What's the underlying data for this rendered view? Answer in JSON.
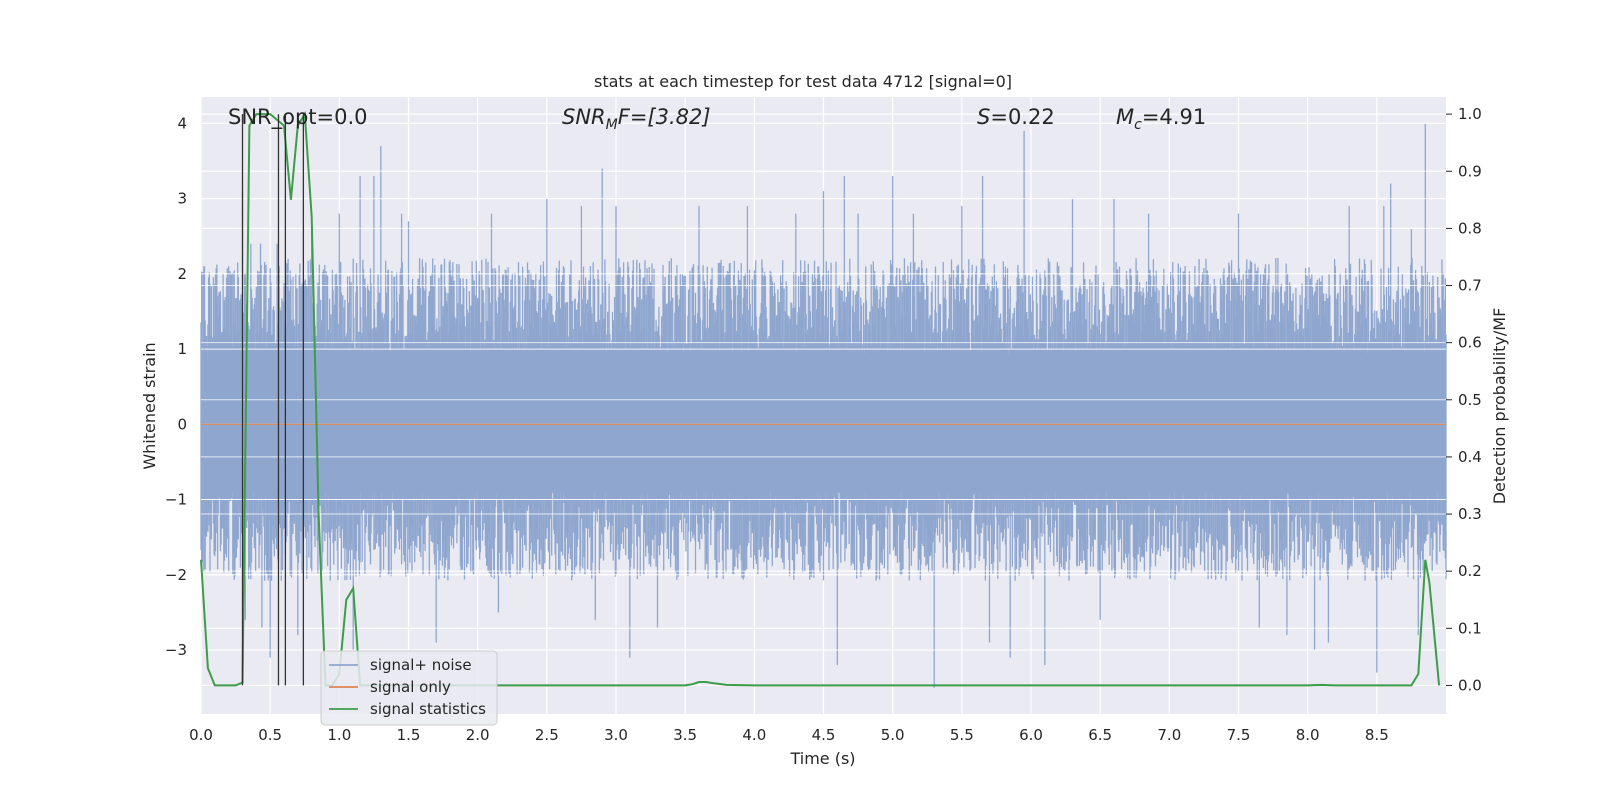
{
  "chart_data": {
    "type": "line",
    "title": "stats at each timestep for test data 4712 [signal=0]",
    "xlabel": "Time (s)",
    "ylabel_left": "Whitened strain",
    "ylabel_right": "Detection probability/MF",
    "xlim": [
      0.0,
      9.0
    ],
    "ylim_left": [
      -3.85,
      4.35
    ],
    "ylim_right": [
      -0.05,
      1.03
    ],
    "x_ticks": [
      "0.0",
      "0.5",
      "1.0",
      "1.5",
      "2.0",
      "2.5",
      "3.0",
      "3.5",
      "4.0",
      "4.5",
      "5.0",
      "5.5",
      "6.0",
      "6.5",
      "7.0",
      "7.5",
      "8.0",
      "8.5"
    ],
    "y_ticks_left": [
      "−3",
      "−2",
      "−1",
      "0",
      "1",
      "2",
      "3",
      "4"
    ],
    "y_ticks_right": [
      "0.0",
      "0.1",
      "0.2",
      "0.3",
      "0.4",
      "0.5",
      "0.6",
      "0.7",
      "0.8",
      "0.9",
      "1.0"
    ],
    "grid": true,
    "legend_position": "lower-left",
    "annotations": {
      "snr_opt": "SNR_opt=0.0",
      "snr_mf_main": "SNR",
      "snr_mf_sub": "M",
      "snr_mf_tail": "F=[3.82]",
      "s_stat": "S",
      "s_value": "=0.22",
      "mc_main": "M",
      "mc_sub": "c",
      "mc_value": "=4.91"
    },
    "series": [
      {
        "name": "signal+ noise",
        "color": "#8fa6cf",
        "description_note": "dense whitened noise",
        "x": [
          0.0,
          9.0
        ],
        "envelope_upper": 1.7,
        "envelope_lower": -1.6,
        "spikes": [
          [
            0.3,
            3.1
          ],
          [
            0.32,
            -2.6
          ],
          [
            0.36,
            2.4
          ],
          [
            0.43,
            2.4
          ],
          [
            0.44,
            -2.7
          ],
          [
            0.5,
            -3.1
          ],
          [
            0.55,
            2.4
          ],
          [
            0.63,
            2.2
          ],
          [
            0.7,
            -2.8
          ],
          [
            0.8,
            2.6
          ],
          [
            1.0,
            2.8
          ],
          [
            1.1,
            -3.0
          ],
          [
            1.15,
            3.3
          ],
          [
            1.25,
            3.3
          ],
          [
            1.3,
            3.7
          ],
          [
            1.45,
            2.8
          ],
          [
            1.5,
            2.7
          ],
          [
            1.7,
            -2.9
          ],
          [
            2.1,
            2.8
          ],
          [
            2.15,
            -2.5
          ],
          [
            2.5,
            3.0
          ],
          [
            2.75,
            2.9
          ],
          [
            2.85,
            -2.6
          ],
          [
            2.9,
            3.4
          ],
          [
            3.0,
            2.9
          ],
          [
            3.1,
            -3.1
          ],
          [
            3.3,
            -2.7
          ],
          [
            3.6,
            2.9
          ],
          [
            3.95,
            2.9
          ],
          [
            4.3,
            2.8
          ],
          [
            4.5,
            3.1
          ],
          [
            4.6,
            -3.2
          ],
          [
            4.65,
            3.3
          ],
          [
            4.75,
            2.8
          ],
          [
            5.0,
            3.3
          ],
          [
            5.15,
            2.8
          ],
          [
            5.3,
            -3.5
          ],
          [
            5.5,
            2.9
          ],
          [
            5.65,
            3.3
          ],
          [
            5.7,
            -2.9
          ],
          [
            5.85,
            -3.1
          ],
          [
            5.95,
            3.9
          ],
          [
            6.1,
            -3.2
          ],
          [
            6.3,
            3.0
          ],
          [
            6.5,
            -2.6
          ],
          [
            6.6,
            3.0
          ],
          [
            6.85,
            2.8
          ],
          [
            7.5,
            2.8
          ],
          [
            7.65,
            -2.7
          ],
          [
            7.85,
            -2.8
          ],
          [
            8.05,
            -3.0
          ],
          [
            8.15,
            -2.9
          ],
          [
            8.3,
            2.9
          ],
          [
            8.5,
            -3.3
          ],
          [
            8.55,
            2.9
          ],
          [
            8.6,
            3.2
          ],
          [
            8.75,
            2.6
          ],
          [
            8.85,
            4.0
          ],
          [
            8.8,
            -2.8
          ]
        ]
      },
      {
        "name": "signal only",
        "color": "#dd8452",
        "x": [
          0.0,
          9.0
        ],
        "y": [
          0.0,
          0.0
        ]
      },
      {
        "name": "signal statistics",
        "color": "#3e9c4a",
        "axis": "right",
        "x": [
          0.0,
          0.05,
          0.1,
          0.2,
          0.25,
          0.3,
          0.35,
          0.4,
          0.45,
          0.5,
          0.55,
          0.6,
          0.65,
          0.7,
          0.75,
          0.8,
          0.85,
          0.9,
          0.95,
          1.0,
          1.05,
          1.1,
          1.15,
          1.2,
          1.3,
          1.5,
          2.0,
          2.5,
          3.0,
          3.5,
          3.55,
          3.6,
          3.65,
          3.7,
          3.8,
          4.0,
          5.0,
          6.0,
          7.0,
          8.0,
          8.1,
          8.2,
          8.5,
          8.75,
          8.8,
          8.85,
          8.88,
          8.95
        ],
        "y": [
          0.22,
          0.03,
          0.0,
          0.0,
          0.0,
          0.005,
          0.98,
          1.0,
          1.0,
          1.0,
          0.99,
          0.98,
          0.85,
          0.98,
          1.0,
          0.82,
          0.3,
          0.0,
          0.0,
          0.02,
          0.15,
          0.17,
          0.0,
          0.0,
          0.0,
          0.0,
          0.0,
          0.0,
          0.0,
          0.0,
          0.002,
          0.006,
          0.006,
          0.004,
          0.001,
          0.0,
          0.0,
          0.0,
          0.0,
          0.0,
          0.001,
          0.0,
          0.0,
          0.0,
          0.02,
          0.22,
          0.18,
          0.0
        ]
      }
    ],
    "marker_lines_x": [
      0.3,
      0.56,
      0.61,
      0.74
    ],
    "marker_color": "#333333"
  }
}
